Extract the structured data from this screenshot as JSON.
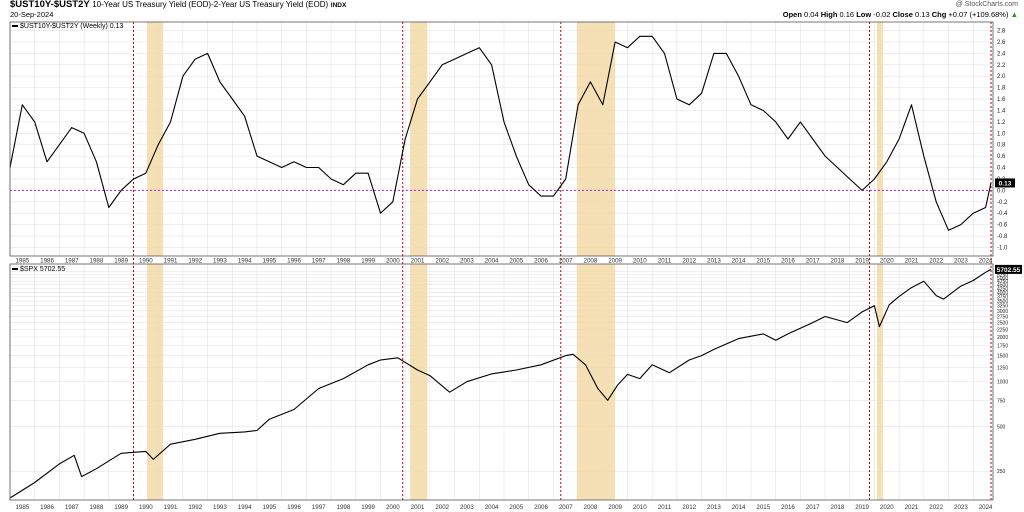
{
  "header": {
    "symbol": "$UST10Y-$UST2Y",
    "description": "10-Year US Treasury Yield (EOD)-2-Year US Treasury Yield (EOD)",
    "exchange": "INDX",
    "date": "20-Sep-2024",
    "brand": "@ StockCharts.com",
    "ohlc": {
      "open_label": "Open",
      "open": "0.04",
      "high_label": "High",
      "high": "0.16",
      "low_label": "Low",
      "low": "-0.02",
      "close_label": "Close",
      "close": "0.13",
      "chg_label": "Chg",
      "chg": "+0.07 (+109.68%)",
      "up_arrow": "▲"
    }
  },
  "colors": {
    "line": "#000000",
    "grid": "#e3e3e3",
    "recession_shade": "#f3d9a8",
    "recession_line": "#c00000",
    "zero_line": "#9a2bd6",
    "label_box": "#000000"
  },
  "chart_data": [
    {
      "type": "line",
      "legend": "$UST10Y-$UST2Y (Weekly) 0.13",
      "last_value_label": "0.13",
      "reference_line": 0,
      "ylim": [
        -1.15,
        2.95
      ],
      "yticks": [
        -1.0,
        -0.8,
        -0.6,
        -0.4,
        -0.2,
        0.0,
        0.2,
        0.4,
        0.6,
        0.8,
        1.0,
        1.2,
        1.4,
        1.6,
        1.8,
        2.0,
        2.2,
        2.4,
        2.6,
        2.8
      ],
      "ytick_labels": [
        "-1.0",
        "-0.8",
        "-0.6",
        "-0.4",
        "-0.2",
        "0.0",
        "0.2",
        "0.4",
        "0.6",
        "0.8",
        "1.0",
        "1.2",
        "1.4",
        "1.6",
        "1.8",
        "2.0",
        "2.2",
        "2.4",
        "2.6",
        "2.8"
      ],
      "xlim": [
        1985.0,
        2024.8
      ],
      "x": [
        1985.0,
        1985.5,
        1986.0,
        1986.5,
        1987.0,
        1987.5,
        1988.0,
        1988.5,
        1989.0,
        1989.5,
        1990.0,
        1990.5,
        1991.0,
        1991.5,
        1992.0,
        1992.5,
        1993.0,
        1993.5,
        1994.0,
        1994.5,
        1995.0,
        1995.5,
        1996.0,
        1996.5,
        1997.0,
        1997.5,
        1998.0,
        1998.5,
        1999.0,
        1999.5,
        2000.0,
        2000.5,
        2001.0,
        2001.5,
        2002.0,
        2002.5,
        2003.0,
        2003.5,
        2004.0,
        2004.5,
        2005.0,
        2005.5,
        2006.0,
        2006.5,
        2007.0,
        2007.5,
        2008.0,
        2008.5,
        2009.0,
        2009.5,
        2010.0,
        2010.5,
        2011.0,
        2011.5,
        2012.0,
        2012.5,
        2013.0,
        2013.5,
        2014.0,
        2014.5,
        2015.0,
        2015.5,
        2016.0,
        2016.5,
        2017.0,
        2017.5,
        2018.0,
        2018.5,
        2019.0,
        2019.5,
        2020.0,
        2020.5,
        2021.0,
        2021.5,
        2022.0,
        2022.5,
        2023.0,
        2023.5,
        2024.0,
        2024.5,
        2024.72
      ],
      "y": [
        0.4,
        1.5,
        1.2,
        0.5,
        0.8,
        1.1,
        1.0,
        0.5,
        -0.3,
        0.0,
        0.2,
        0.3,
        0.8,
        1.2,
        2.0,
        2.3,
        2.4,
        1.9,
        1.6,
        1.3,
        0.6,
        0.5,
        0.4,
        0.5,
        0.4,
        0.4,
        0.2,
        0.1,
        0.3,
        0.3,
        -0.4,
        -0.2,
        0.9,
        1.6,
        1.9,
        2.2,
        2.3,
        2.4,
        2.5,
        2.2,
        1.2,
        0.6,
        0.1,
        -0.1,
        -0.1,
        0.2,
        1.5,
        1.9,
        1.5,
        2.6,
        2.5,
        2.7,
        2.7,
        2.4,
        1.6,
        1.5,
        1.7,
        2.4,
        2.4,
        2.0,
        1.5,
        1.4,
        1.2,
        0.9,
        1.2,
        0.9,
        0.6,
        0.4,
        0.2,
        0.0,
        0.2,
        0.5,
        0.9,
        1.5,
        0.6,
        -0.2,
        -0.7,
        -0.6,
        -0.4,
        -0.3,
        0.13
      ]
    },
    {
      "type": "line",
      "legend": "$SPX 5702.55",
      "last_value_label": "5702.55",
      "yscale": "log",
      "ylim": [
        160,
        6200
      ],
      "yticks": [
        250,
        500,
        750,
        1000,
        1250,
        1500,
        1750,
        2000,
        2250,
        2500,
        2750,
        3000,
        3250,
        3500,
        3750,
        4000,
        4250,
        4500,
        4750,
        5000,
        5250,
        5500
      ],
      "ytick_labels": [
        "250",
        "500",
        "750",
        "1000",
        "1250",
        "1500",
        "1750",
        "2000",
        "2250",
        "2500",
        "2750",
        "3000",
        "3250",
        "3500",
        "3750",
        "4000",
        "4250",
        "4500",
        "4750",
        "5000",
        "5250",
        "5500"
      ],
      "xlim": [
        1985.0,
        2024.8
      ],
      "x": [
        1985.0,
        1986.0,
        1987.0,
        1987.6,
        1987.9,
        1988.5,
        1989.5,
        1990.5,
        1990.8,
        1991.5,
        1992.5,
        1993.5,
        1994.5,
        1995.0,
        1995.5,
        1996.5,
        1997.5,
        1998.5,
        1999.5,
        2000.0,
        2000.7,
        2001.5,
        2002.0,
        2002.8,
        2003.5,
        2004.5,
        2005.5,
        2006.5,
        2007.5,
        2007.8,
        2008.3,
        2008.8,
        2009.2,
        2009.6,
        2010.0,
        2010.5,
        2011.0,
        2011.7,
        2012.5,
        2013.0,
        2013.5,
        2014.5,
        2015.5,
        2016.0,
        2016.5,
        2017.5,
        2018.0,
        2018.9,
        2019.5,
        2020.0,
        2020.2,
        2020.6,
        2021.0,
        2021.5,
        2022.0,
        2022.5,
        2022.8,
        2023.5,
        2024.0,
        2024.5,
        2024.72
      ],
      "y": [
        165,
        210,
        280,
        320,
        230,
        260,
        330,
        340,
        300,
        380,
        410,
        450,
        460,
        470,
        560,
        650,
        900,
        1050,
        1300,
        1400,
        1450,
        1200,
        1100,
        850,
        1000,
        1130,
        1200,
        1300,
        1500,
        1530,
        1300,
        900,
        750,
        950,
        1120,
        1050,
        1300,
        1150,
        1400,
        1500,
        1650,
        1950,
        2100,
        1900,
        2100,
        2500,
        2750,
        2500,
        2950,
        3250,
        2350,
        3300,
        3750,
        4300,
        4750,
        3800,
        3600,
        4400,
        4800,
        5450,
        5702.55
      ]
    }
  ],
  "x_axis": {
    "top_years": [
      "1985",
      "1986",
      "1987",
      "1988",
      "1989",
      "1990",
      "1991",
      "1992",
      "1993",
      "1994",
      "1995",
      "1996",
      "1997",
      "1998",
      "1999",
      "2000",
      "2001",
      "2002",
      "2003",
      "2004",
      "2005",
      "2006",
      "2007",
      "2008",
      "2009",
      "2010",
      "2011",
      "2012",
      "2013",
      "2014",
      "2015",
      "2016",
      "2017",
      "2018",
      "2019",
      "2020",
      "2021",
      "2022",
      "2023",
      "2024"
    ],
    "bottom_years": [
      "1985",
      "1986",
      "1987",
      "1988",
      "1989",
      "1990",
      "1991",
      "1992",
      "1993",
      "1994",
      "1995",
      "1996",
      "1997",
      "1998",
      "1999",
      "2000",
      "2001",
      "2002",
      "2003",
      "2004",
      "2005",
      "2006",
      "2007",
      "2008",
      "2009",
      "2010",
      "2011",
      "2012",
      "2013",
      "2014",
      "2015",
      "2016",
      "2017",
      "2018",
      "2019",
      "2020",
      "2021",
      "2022",
      "2023",
      "2024"
    ]
  },
  "annotations": {
    "recessions": [
      [
        1990.55,
        1991.2
      ],
      [
        2001.2,
        2001.9
      ],
      [
        2007.95,
        2009.5
      ],
      [
        2020.1,
        2020.35
      ]
    ],
    "inversion_markers": [
      1990.0,
      2000.9,
      2007.3,
      2019.8,
      2024.72
    ]
  }
}
